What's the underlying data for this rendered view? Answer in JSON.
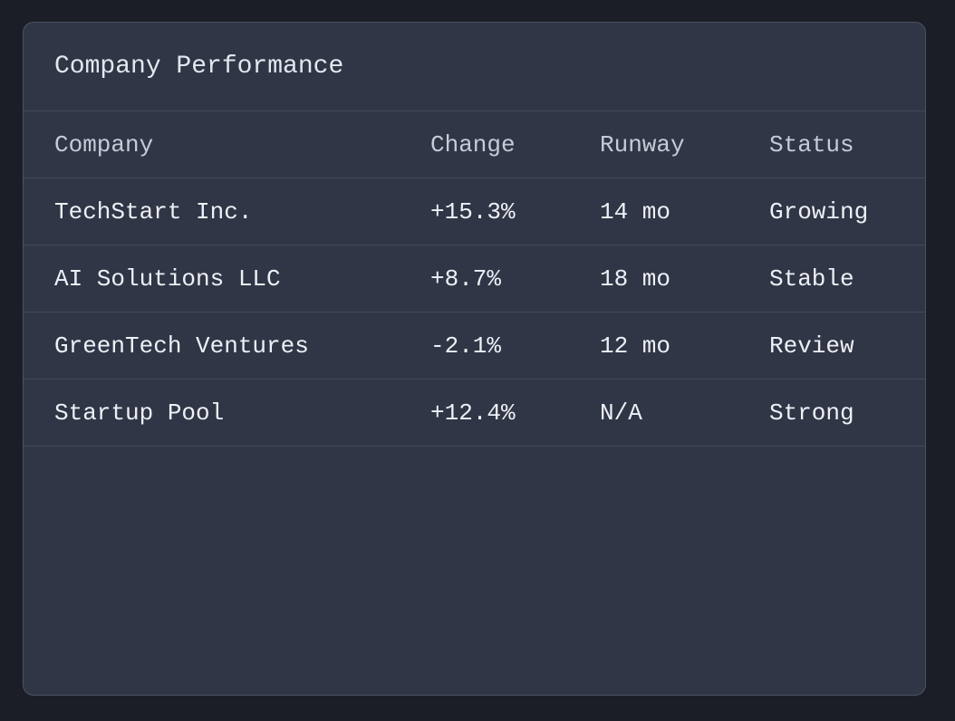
{
  "panel": {
    "title": "Company Performance"
  },
  "table": {
    "headers": [
      "Company",
      "Change",
      "Runway",
      "Status"
    ],
    "rows": [
      [
        "TechStart Inc.",
        "+15.3%",
        "14 mo",
        "Growing"
      ],
      [
        "AI Solutions LLC",
        "+8.7%",
        "18 mo",
        "Stable"
      ],
      [
        "GreenTech Ventures",
        "-2.1%",
        "12 mo",
        "Review"
      ],
      [
        "Startup Pool",
        "+12.4%",
        "N/A",
        "Strong"
      ]
    ]
  },
  "colors": {
    "background": "#1b1e26",
    "panel": "#303646",
    "border": "#4a5263",
    "divider": "#434a5a",
    "text": "#eef0f5",
    "header_text": "#c6cbd6"
  }
}
